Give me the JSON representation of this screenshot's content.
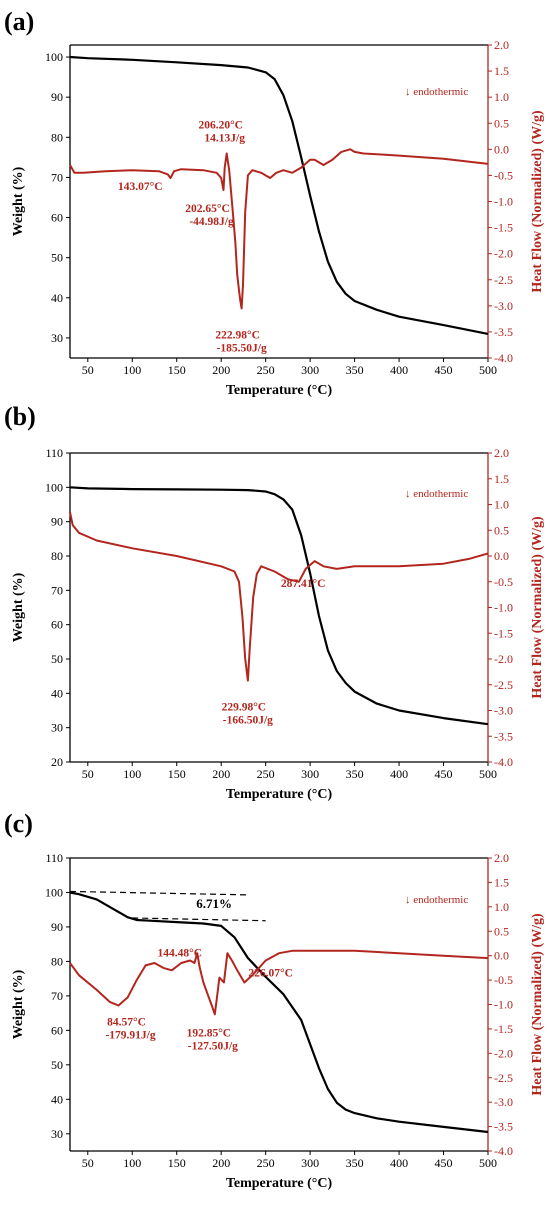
{
  "chart_data": [
    {
      "type": "line",
      "panel_label": "(a)",
      "xlabel": "Temperature (°C)",
      "ylabel": "Weight (%)",
      "y2label": "Heat Flow (Normalized) (W/g)",
      "xlim": [
        30,
        500
      ],
      "ylim": [
        25,
        103
      ],
      "y2lim": [
        -4.0,
        2.0
      ],
      "xticks": [
        50,
        100,
        150,
        200,
        250,
        300,
        350,
        400,
        450,
        500
      ],
      "yticks": [
        30,
        40,
        50,
        60,
        70,
        80,
        90,
        100
      ],
      "y2ticks": [
        2.0,
        1.5,
        1.0,
        0.5,
        0.0,
        -0.5,
        -1.0,
        -1.5,
        -2.0,
        -2.5,
        -3.0,
        -3.5,
        -4.0
      ],
      "legend": {
        "text": "endothermic",
        "symbol": "↓",
        "placement": "top-right"
      },
      "grid": false,
      "series": [
        {
          "axis": "left",
          "color": "#000000",
          "x": [
            30,
            50,
            100,
            150,
            200,
            230,
            250,
            260,
            270,
            280,
            290,
            300,
            310,
            320,
            330,
            340,
            350,
            375,
            400,
            450,
            500
          ],
          "y": [
            100,
            99.7,
            99.3,
            98.7,
            98.0,
            97.4,
            96.2,
            94.5,
            90.5,
            84.0,
            75.0,
            65.5,
            56.5,
            49.0,
            44.0,
            41.0,
            39.2,
            37.0,
            35.3,
            33.2,
            31.0
          ]
        },
        {
          "axis": "right",
          "color": "#b3261e",
          "x": [
            30,
            35,
            45,
            70,
            100,
            130,
            140,
            143,
            147,
            155,
            180,
            195,
            200,
            202.65,
            204,
            206.2,
            209,
            213,
            216,
            218,
            220,
            221.5,
            222.98,
            224.5,
            227,
            230,
            235,
            245,
            255,
            262,
            270,
            280,
            290,
            300,
            305,
            315,
            325,
            335,
            345,
            350,
            360,
            380,
            400,
            450,
            500
          ],
          "y": [
            -0.3,
            -0.45,
            -0.45,
            -0.42,
            -0.4,
            -0.42,
            -0.48,
            -0.55,
            -0.42,
            -0.38,
            -0.4,
            -0.45,
            -0.55,
            -0.78,
            -0.35,
            -0.08,
            -0.4,
            -1.2,
            -1.8,
            -2.4,
            -2.7,
            -2.9,
            -3.05,
            -2.6,
            -1.2,
            -0.5,
            -0.4,
            -0.45,
            -0.55,
            -0.45,
            -0.4,
            -0.45,
            -0.35,
            -0.2,
            -0.2,
            -0.3,
            -0.2,
            -0.05,
            0.0,
            -0.05,
            -0.08,
            -0.1,
            -0.12,
            -0.18,
            -0.28
          ]
        }
      ],
      "annotations": [
        {
          "x": 143.07,
          "y2": -0.55,
          "line1": "143.07°C",
          "line2": ""
        },
        {
          "x": 206.2,
          "y2": -0.08,
          "line1": "206.20°C",
          "line2": "14.13J/g"
        },
        {
          "x": 202.65,
          "y2": -0.78,
          "line1": "202.65°C",
          "line2": "-44.98J/g"
        },
        {
          "x": 222.98,
          "y2": -3.05,
          "line1": "222.98°C",
          "line2": "-185.50J/g"
        }
      ],
      "extra_labels": []
    },
    {
      "type": "line",
      "panel_label": "(b)",
      "xlabel": "Temperature (°C)",
      "ylabel": "Weight (%)",
      "y2label": "Heat Flow (Normalized) (W/g)",
      "xlim": [
        30,
        500
      ],
      "ylim": [
        20,
        110
      ],
      "y2lim": [
        -4.0,
        2.0
      ],
      "xticks": [
        50,
        100,
        150,
        200,
        250,
        300,
        350,
        400,
        450,
        500
      ],
      "yticks": [
        20,
        30,
        40,
        50,
        60,
        70,
        80,
        90,
        100,
        110
      ],
      "y2ticks": [
        2.0,
        1.5,
        1.0,
        0.5,
        0.0,
        -0.5,
        -1.0,
        -1.5,
        -2.0,
        -2.5,
        -3.0,
        -3.5,
        -4.0
      ],
      "legend": {
        "text": "endothermic",
        "symbol": "↓",
        "placement": "top-right"
      },
      "grid": false,
      "series": [
        {
          "axis": "left",
          "color": "#000000",
          "x": [
            30,
            50,
            100,
            150,
            200,
            230,
            250,
            260,
            270,
            280,
            290,
            300,
            310,
            320,
            330,
            340,
            350,
            375,
            400,
            450,
            500
          ],
          "y": [
            100,
            99.7,
            99.5,
            99.4,
            99.3,
            99.2,
            98.8,
            98.0,
            96.5,
            93.5,
            86.0,
            75.0,
            62.5,
            52.5,
            46.5,
            43.0,
            40.5,
            37.0,
            35.0,
            32.8,
            31.0
          ]
        },
        {
          "axis": "right",
          "color": "#b3261e",
          "x": [
            30,
            33,
            40,
            60,
            100,
            150,
            200,
            215,
            220,
            224,
            227,
            229.98,
            232,
            236,
            240,
            245,
            260,
            275,
            287.41,
            295,
            305,
            315,
            330,
            350,
            400,
            450,
            480,
            500
          ],
          "y": [
            0.85,
            0.6,
            0.45,
            0.3,
            0.15,
            0.0,
            -0.2,
            -0.3,
            -0.5,
            -1.2,
            -2.0,
            -2.42,
            -1.8,
            -0.8,
            -0.35,
            -0.2,
            -0.3,
            -0.45,
            -0.5,
            -0.25,
            -0.1,
            -0.2,
            -0.25,
            -0.2,
            -0.2,
            -0.15,
            -0.05,
            0.05
          ]
        }
      ],
      "annotations": [
        {
          "x": 287.41,
          "y2": -0.5,
          "line1": "287.41°C",
          "line2": ""
        },
        {
          "x": 229.98,
          "y2": -2.42,
          "line1": "229.98°C",
          "line2": "-166.50J/g"
        }
      ],
      "extra_labels": []
    },
    {
      "type": "line",
      "panel_label": "(c)",
      "xlabel": "Temperature (°C)",
      "ylabel": "Weight (%)",
      "y2label": "Heat Flow (Normalized) (W/g)",
      "xlim": [
        30,
        500
      ],
      "ylim": [
        25,
        110
      ],
      "y2lim": [
        -4.0,
        2.0
      ],
      "xticks": [
        50,
        100,
        150,
        200,
        250,
        300,
        350,
        400,
        450,
        500
      ],
      "yticks": [
        30,
        40,
        50,
        60,
        70,
        80,
        90,
        100,
        110
      ],
      "y2ticks": [
        2.0,
        1.5,
        1.0,
        0.5,
        0.0,
        -0.5,
        -1.0,
        -1.5,
        -2.0,
        -2.5,
        -3.0,
        -3.5,
        -4.0
      ],
      "legend": {
        "text": "endothermic",
        "symbol": "↓",
        "placement": "top-right"
      },
      "grid": false,
      "series": [
        {
          "axis": "left",
          "color": "#000000",
          "x": [
            30,
            40,
            60,
            80,
            95,
            105,
            120,
            150,
            180,
            200,
            215,
            230,
            250,
            270,
            290,
            300,
            310,
            320,
            330,
            340,
            350,
            375,
            400,
            450,
            500
          ],
          "y": [
            100,
            99.5,
            98.0,
            95.0,
            92.8,
            92.0,
            91.8,
            91.4,
            91.0,
            90.3,
            87.0,
            81.0,
            75.5,
            70.5,
            63.0,
            56.0,
            49.0,
            43.0,
            39.0,
            37.0,
            36.0,
            34.5,
            33.5,
            32.0,
            30.5
          ]
        },
        {
          "axis": "right",
          "color": "#b3261e",
          "x": [
            30,
            40,
            60,
            75,
            84.57,
            95,
            105,
            115,
            125,
            135,
            144.48,
            155,
            165,
            170,
            173,
            176,
            180,
            186,
            190,
            192.85,
            195,
            198,
            203,
            207,
            212,
            218,
            226.07,
            235,
            250,
            265,
            280,
            300,
            350,
            400,
            450,
            500
          ],
          "y": [
            -0.15,
            -0.4,
            -0.7,
            -0.95,
            -1.02,
            -0.85,
            -0.5,
            -0.2,
            -0.15,
            -0.25,
            -0.3,
            -0.15,
            -0.1,
            -0.15,
            0.05,
            -0.25,
            -0.55,
            -0.85,
            -1.05,
            -1.2,
            -0.9,
            -0.45,
            -0.55,
            0.05,
            -0.1,
            -0.3,
            -0.55,
            -0.4,
            -0.1,
            0.05,
            0.1,
            0.1,
            0.1,
            0.05,
            0.0,
            -0.05
          ]
        }
      ],
      "annotations": [
        {
          "x": 84.57,
          "y2": -1.02,
          "line1": "84.57°C",
          "line2": "-179.91J/g"
        },
        {
          "x": 144.48,
          "y2": -0.3,
          "line1": "144.48°C",
          "line2": ""
        },
        {
          "x": 192.85,
          "y2": -1.2,
          "line1": "192.85°C",
          "line2": "-127.50J/g"
        },
        {
          "x": 226.07,
          "y2": -0.55,
          "line1": "226.07°C",
          "line2": ""
        }
      ],
      "extra_labels": [
        {
          "text": "6.71%"
        }
      ],
      "guides": [
        {
          "x": [
            30,
            230
          ],
          "y": [
            100.3,
            99.3
          ]
        },
        {
          "x": [
            100,
            250
          ],
          "y": [
            92.6,
            91.8
          ]
        }
      ]
    }
  ]
}
